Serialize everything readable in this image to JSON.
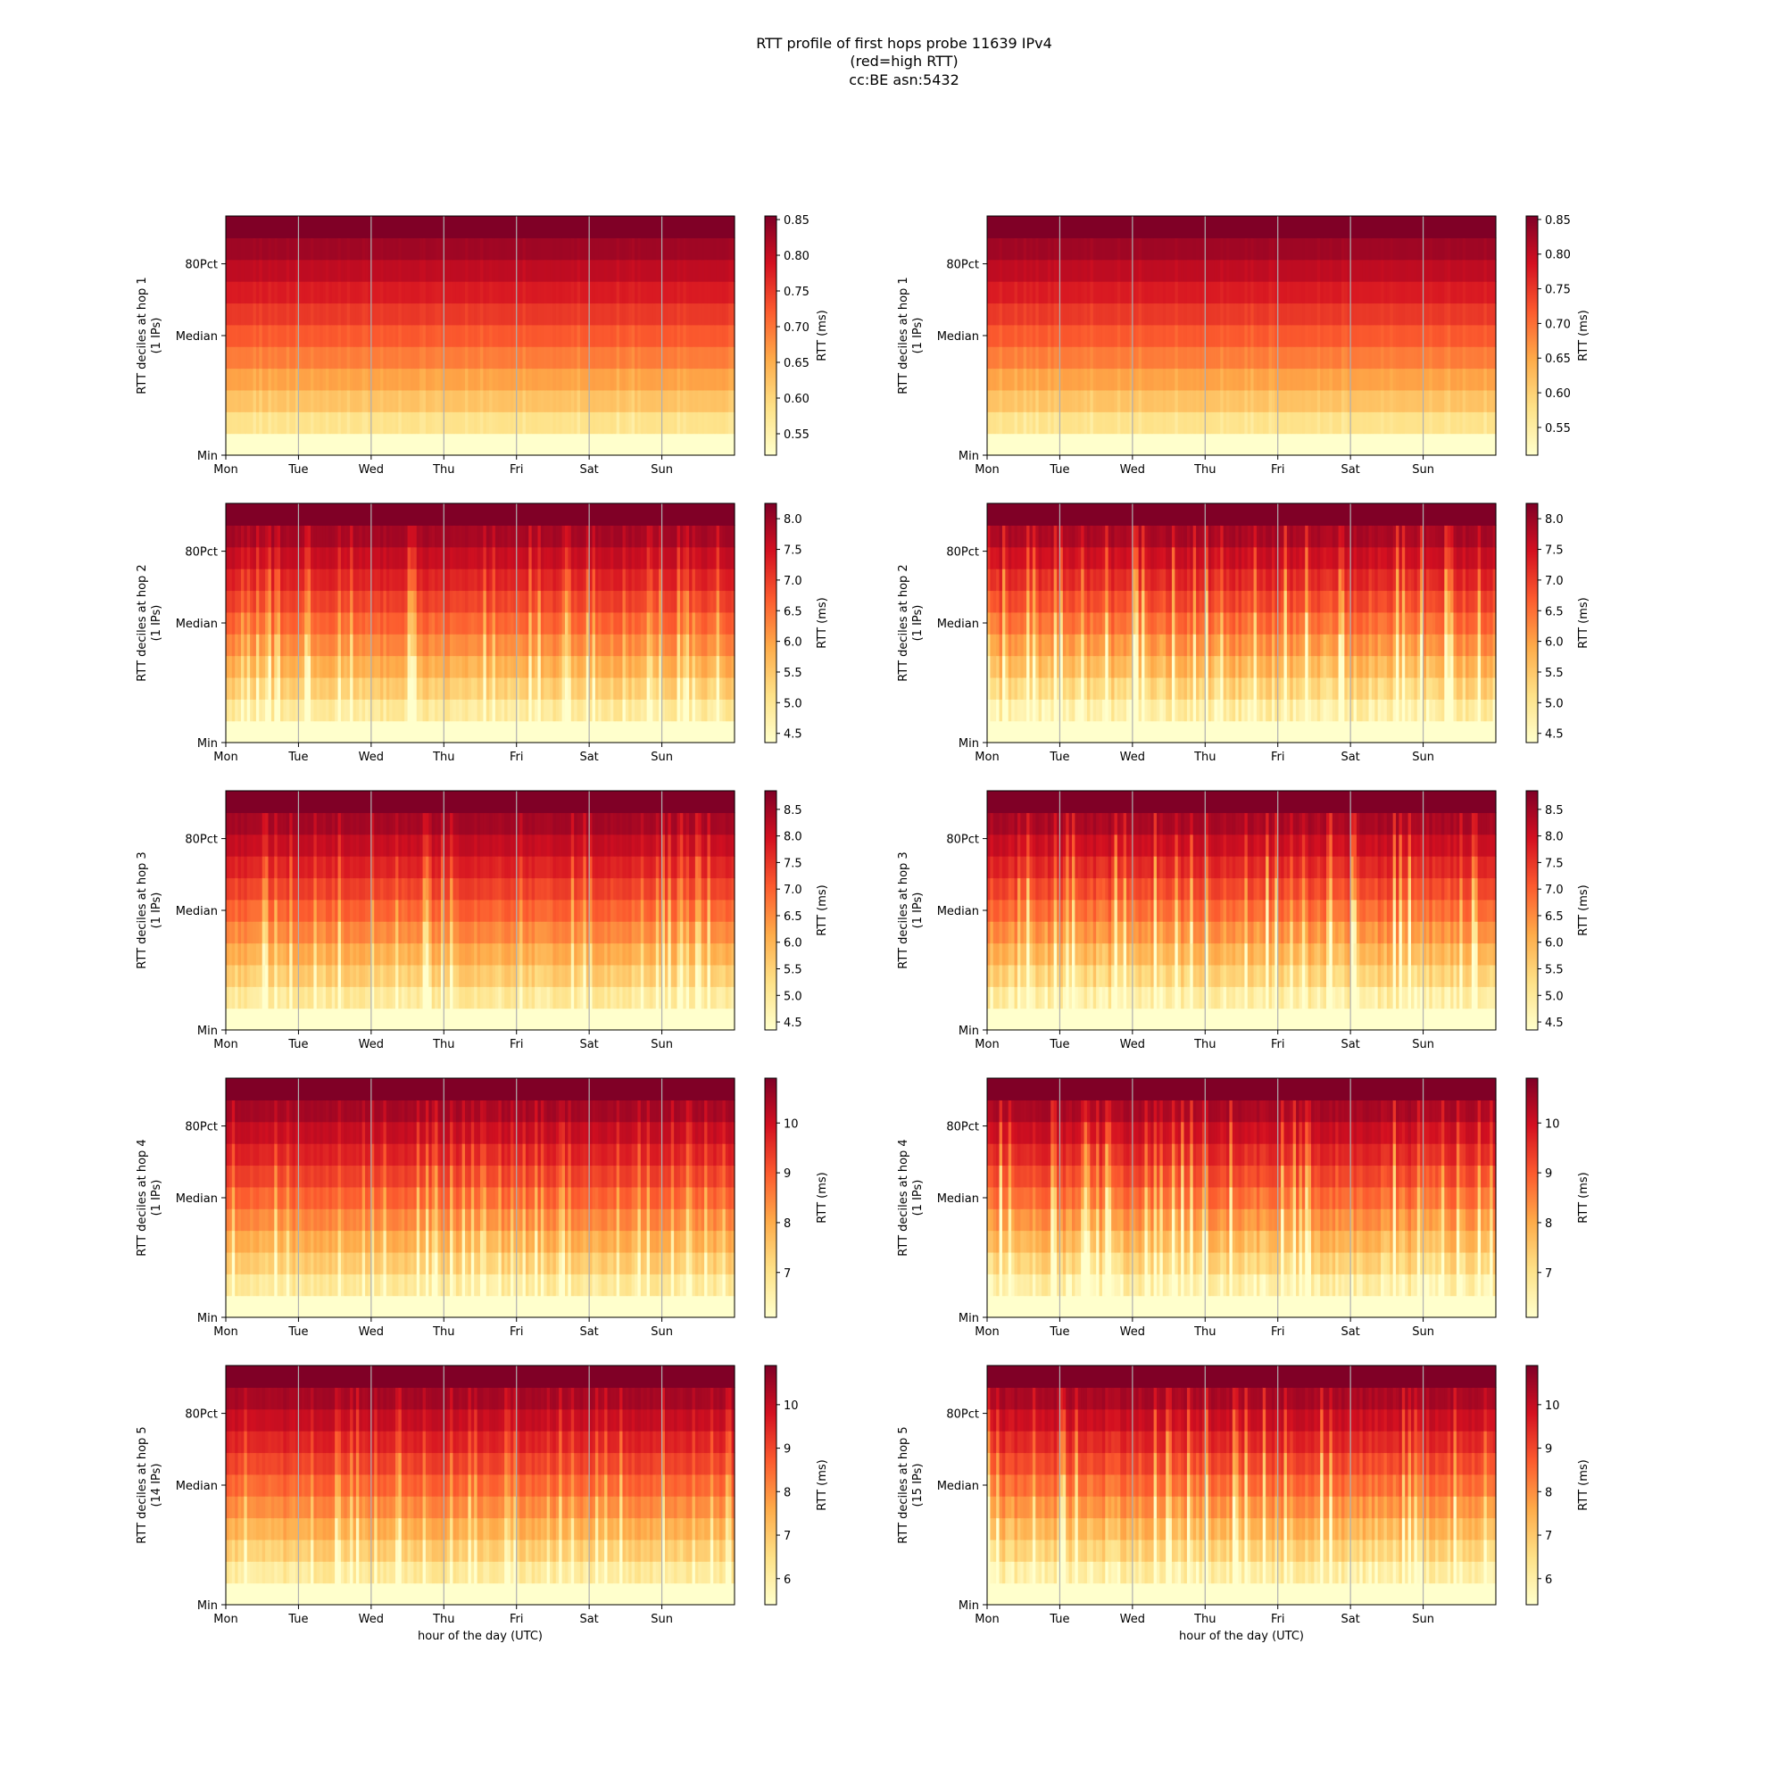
{
  "title": {
    "line1": "RTT profile of first hops probe 11639 IPv4",
    "line2": "(red=high RTT)",
    "line3": "cc:BE asn:5432"
  },
  "colormap": [
    "#ffffcc",
    "#fee187",
    "#feab49",
    "#fc5b2e",
    "#d41020",
    "#800026"
  ],
  "chart_data": {
    "type": "heatmap",
    "x_ticks": [
      "Mon",
      "Tue",
      "Wed",
      "Thu",
      "Fri",
      "Sat",
      "Sun"
    ],
    "y_ticks": [
      "Min",
      "Median",
      "80Pct"
    ],
    "n_deciles": 11,
    "xlabel": "hour of the day (UTC)",
    "colorbar_label": "RTT (ms)",
    "panels": [
      {
        "hop": 1,
        "column": 0,
        "ylabel": "RTT deciles at hop 1",
        "ips": "(1 IPs)",
        "vmin": 0.52,
        "vmax": 0.855,
        "cbar_ticks": [
          "0.55",
          "0.60",
          "0.65",
          "0.70",
          "0.75",
          "0.80",
          "0.85"
        ],
        "noise": 0.1,
        "seed": 11
      },
      {
        "hop": 1,
        "column": 1,
        "ylabel": "RTT deciles at hop 1",
        "ips": "(1 IPs)",
        "vmin": 0.51,
        "vmax": 0.855,
        "cbar_ticks": [
          "0.55",
          "0.60",
          "0.65",
          "0.70",
          "0.75",
          "0.80",
          "0.85"
        ],
        "noise": 0.1,
        "seed": 12
      },
      {
        "hop": 2,
        "column": 0,
        "ylabel": "RTT deciles at hop 2",
        "ips": "(1 IPs)",
        "vmin": 4.35,
        "vmax": 8.25,
        "cbar_ticks": [
          "4.5",
          "5.0",
          "5.5",
          "6.0",
          "6.5",
          "7.0",
          "7.5",
          "8.0"
        ],
        "noise": 0.6,
        "seed": 21
      },
      {
        "hop": 2,
        "column": 1,
        "ylabel": "RTT deciles at hop 2",
        "ips": "(1 IPs)",
        "vmin": 4.35,
        "vmax": 8.25,
        "cbar_ticks": [
          "4.5",
          "5.0",
          "5.5",
          "6.0",
          "6.5",
          "7.0",
          "7.5",
          "8.0"
        ],
        "noise": 1.0,
        "seed": 22
      },
      {
        "hop": 3,
        "column": 0,
        "ylabel": "RTT deciles at hop 3",
        "ips": "(1 IPs)",
        "vmin": 4.35,
        "vmax": 8.85,
        "cbar_ticks": [
          "4.5",
          "5.0",
          "5.5",
          "6.0",
          "6.5",
          "7.0",
          "7.5",
          "8.0",
          "8.5"
        ],
        "noise": 0.6,
        "seed": 31
      },
      {
        "hop": 3,
        "column": 1,
        "ylabel": "RTT deciles at hop 3",
        "ips": "(1 IPs)",
        "vmin": 4.35,
        "vmax": 8.85,
        "cbar_ticks": [
          "4.5",
          "5.0",
          "5.5",
          "6.0",
          "6.5",
          "7.0",
          "7.5",
          "8.0",
          "8.5"
        ],
        "noise": 1.0,
        "seed": 32
      },
      {
        "hop": 4,
        "column": 0,
        "ylabel": "RTT deciles at hop 4",
        "ips": "(1 IPs)",
        "vmin": 6.1,
        "vmax": 10.9,
        "cbar_ticks": [
          "7",
          "8",
          "9",
          "10"
        ],
        "noise": 0.6,
        "seed": 41
      },
      {
        "hop": 4,
        "column": 1,
        "ylabel": "RTT deciles at hop 4",
        "ips": "(1 IPs)",
        "vmin": 6.1,
        "vmax": 10.9,
        "cbar_ticks": [
          "7",
          "8",
          "9",
          "10"
        ],
        "noise": 1.0,
        "seed": 42
      },
      {
        "hop": 5,
        "column": 0,
        "ylabel": "RTT deciles at hop 5",
        "ips": "(14 IPs)",
        "vmin": 5.4,
        "vmax": 10.9,
        "cbar_ticks": [
          "6",
          "7",
          "8",
          "9",
          "10"
        ],
        "noise": 0.6,
        "seed": 51
      },
      {
        "hop": 5,
        "column": 1,
        "ylabel": "RTT deciles at hop 5",
        "ips": "(15 IPs)",
        "vmin": 5.4,
        "vmax": 10.9,
        "cbar_ticks": [
          "6",
          "7",
          "8",
          "9",
          "10"
        ],
        "noise": 1.0,
        "seed": 52
      }
    ]
  }
}
